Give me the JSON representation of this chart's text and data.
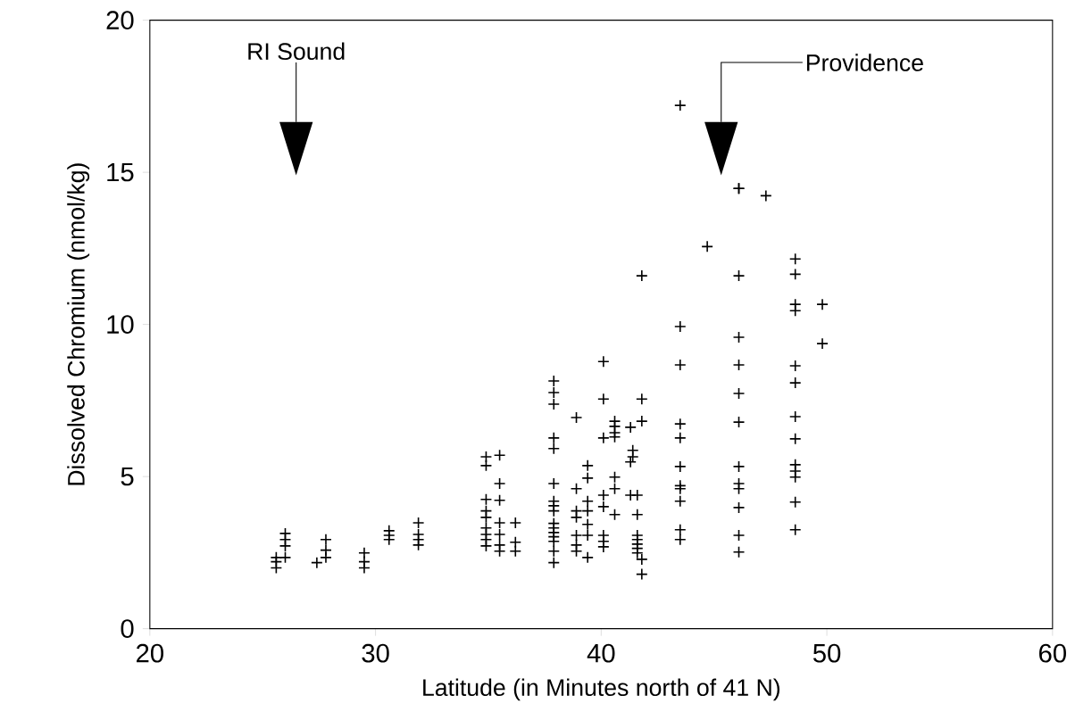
{
  "chart_data": {
    "type": "scatter",
    "xlabel": "Latitude (in Minutes north of 41 N)",
    "ylabel": "Dissolved Chromium (nmol/kg)",
    "xlim": [
      20,
      60
    ],
    "ylim": [
      0,
      20
    ],
    "xticks": [
      20,
      30,
      40,
      50,
      60
    ],
    "yticks": [
      0,
      5,
      10,
      15,
      20
    ],
    "grid": false,
    "marker": "cross",
    "annotations": [
      "RI Sound",
      "Providence"
    ],
    "series": [
      {
        "color": "#000000",
        "x": [
          25.6,
          25.6,
          25.6,
          26.0,
          26.0,
          26.0,
          26.0,
          27.4,
          27.8,
          27.8,
          27.8,
          29.5,
          29.5,
          29.5,
          30.6,
          30.6,
          30.6,
          31.9,
          31.9,
          31.9,
          31.9,
          34.9,
          34.9,
          34.9,
          34.9,
          34.9,
          34.9,
          34.9,
          34.9,
          34.9,
          35.5,
          35.5,
          35.5,
          35.5,
          35.5,
          35.5,
          35.5,
          36.2,
          36.2,
          36.2,
          37.9,
          37.9,
          37.9,
          37.9,
          37.9,
          37.9,
          37.9,
          37.9,
          37.9,
          37.9,
          37.9,
          37.9,
          37.9,
          37.9,
          37.9,
          37.9,
          38.9,
          38.9,
          38.9,
          38.9,
          38.9,
          38.9,
          38.9,
          39.4,
          39.4,
          39.4,
          39.4,
          39.4,
          39.4,
          39.4,
          40.1,
          40.1,
          40.1,
          40.1,
          40.1,
          40.1,
          40.1,
          40.1,
          40.6,
          40.6,
          40.6,
          40.6,
          40.6,
          40.6,
          40.6,
          41.3,
          41.3,
          41.3,
          41.4,
          41.4,
          41.6,
          41.6,
          41.6,
          41.6,
          41.6,
          41.6,
          41.6,
          41.8,
          41.8,
          41.8,
          41.8,
          41.8,
          43.5,
          43.5,
          43.5,
          43.5,
          43.5,
          43.5,
          43.5,
          43.5,
          43.5,
          43.5,
          43.5,
          44.7,
          46.1,
          46.1,
          46.1,
          46.1,
          46.1,
          46.1,
          46.1,
          46.1,
          46.1,
          46.1,
          46.1,
          46.1,
          46.1,
          47.3,
          48.6,
          48.6,
          48.6,
          48.6,
          48.6,
          48.6,
          48.6,
          48.6,
          48.6,
          48.6,
          48.6,
          48.6,
          48.6,
          49.8,
          49.8
        ],
        "values": [
          2.34,
          2.2,
          2.0,
          3.13,
          2.93,
          2.72,
          2.34,
          2.17,
          2.93,
          2.58,
          2.34,
          2.49,
          2.2,
          2.0,
          3.22,
          3.07,
          2.93,
          3.48,
          3.1,
          2.93,
          2.75,
          5.65,
          5.36,
          4.25,
          3.87,
          3.66,
          3.31,
          3.1,
          2.93,
          2.72,
          5.7,
          4.77,
          4.22,
          3.48,
          3.1,
          2.75,
          2.55,
          3.48,
          2.84,
          2.55,
          8.14,
          7.76,
          7.38,
          6.27,
          5.92,
          4.77,
          4.19,
          4.04,
          3.87,
          3.46,
          3.31,
          3.16,
          3.02,
          2.87,
          2.55,
          2.17,
          6.94,
          4.6,
          3.87,
          3.66,
          3.07,
          2.75,
          2.55,
          5.36,
          4.95,
          4.19,
          3.87,
          3.43,
          3.07,
          2.34,
          8.78,
          7.55,
          6.27,
          4.39,
          4.01,
          3.07,
          2.87,
          2.69,
          6.82,
          6.65,
          6.44,
          6.3,
          4.98,
          4.6,
          3.75,
          6.62,
          5.48,
          4.39,
          5.86,
          5.65,
          4.39,
          3.75,
          3.07,
          2.93,
          2.78,
          2.64,
          2.49,
          11.6,
          7.55,
          6.82,
          2.28,
          1.79,
          17.2,
          9.93,
          8.67,
          6.73,
          6.27,
          5.33,
          4.7,
          4.6,
          4.19,
          3.25,
          2.93,
          12.56,
          14.47,
          14.47,
          11.6,
          9.58,
          8.67,
          7.73,
          6.79,
          5.33,
          4.77,
          4.6,
          3.98,
          3.07,
          2.52,
          14.23,
          12.15,
          11.65,
          10.66,
          10.45,
          8.64,
          8.08,
          6.97,
          6.24,
          5.39,
          5.18,
          4.98,
          4.16,
          3.25,
          10.66,
          9.37
        ]
      }
    ]
  }
}
